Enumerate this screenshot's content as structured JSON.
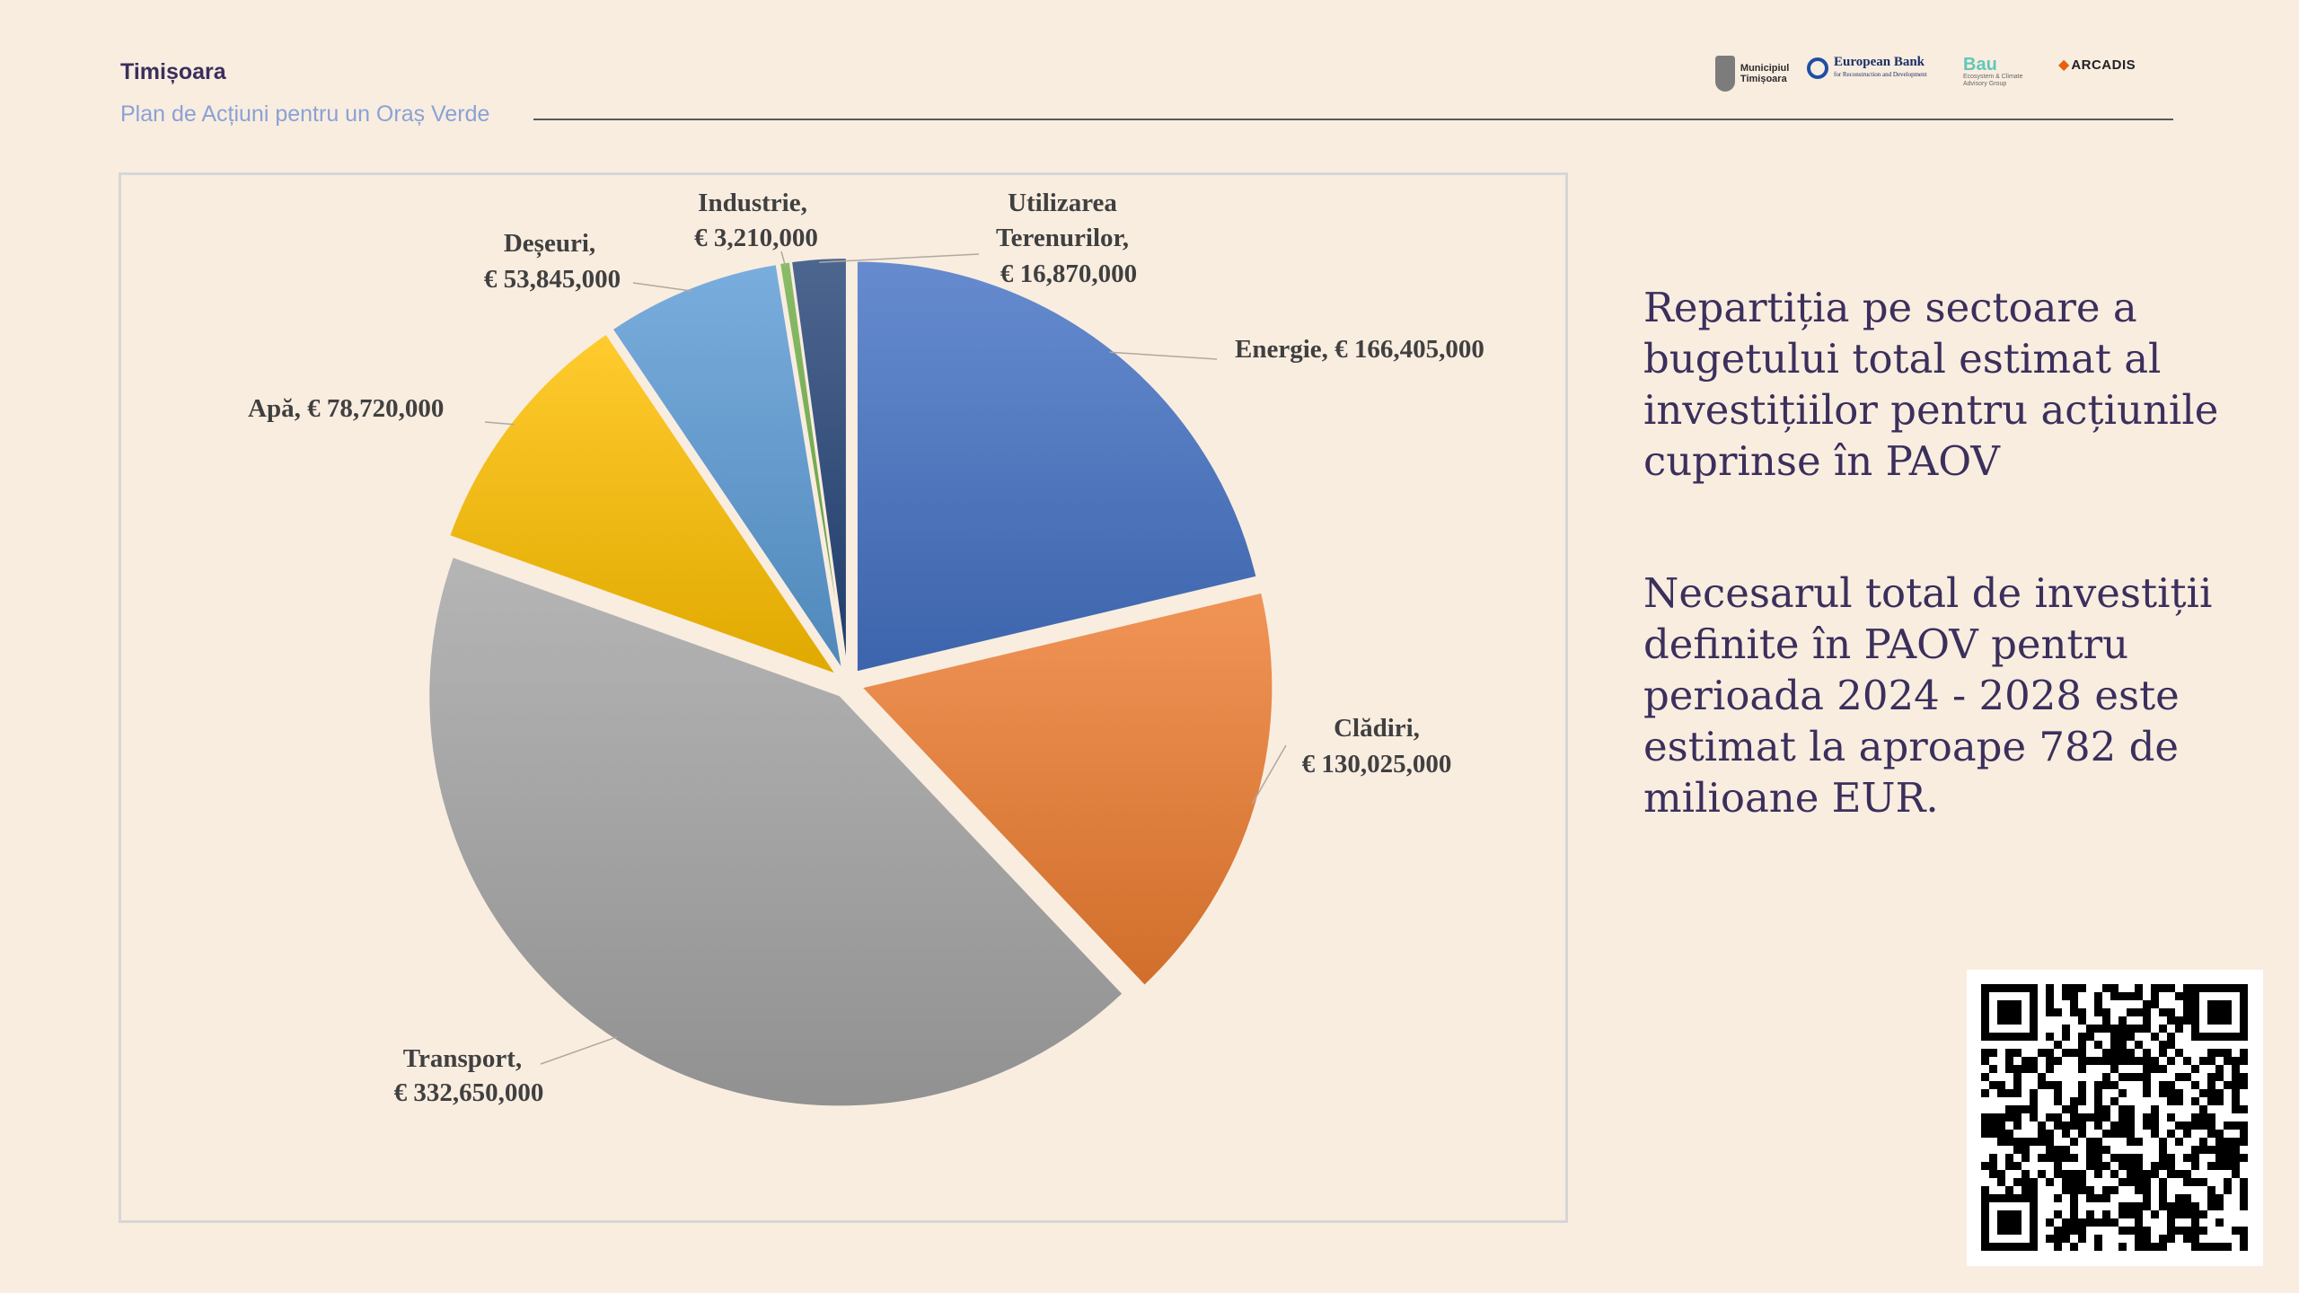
{
  "header": {
    "title": "Timișoara",
    "subtitle": "Plan de Acțiuni pentru un Oraș Verde"
  },
  "logos": {
    "municipiu": "Municipiul Timișoara",
    "ebrd": "European Bank",
    "ebrd_sub": "for Reconstruction and Development",
    "bau": "Bau",
    "bau_sub": "Ecosystem & Climate Advisory Group",
    "arcadis": "ARCADIS"
  },
  "chart_data": {
    "type": "pie",
    "exploded": true,
    "currency": "€",
    "slices": [
      {
        "name": "Energie",
        "value": 166405000,
        "label_name": "Energie,",
        "label_value": "€ 166,405,000",
        "color": "#4472c4"
      },
      {
        "name": "Clădiri",
        "value": 130025000,
        "label_name": "Clădiri,",
        "label_value": "€ 130,025,000",
        "color": "#ed7d31"
      },
      {
        "name": "Transport",
        "value": 332650000,
        "label_name": "Transport,",
        "label_value": "€ 332,650,000",
        "color": "#a5a5a5"
      },
      {
        "name": "Apă",
        "value": 78720000,
        "label_name": "Apă,",
        "label_value": "€ 78,720,000",
        "color": "#ffc000"
      },
      {
        "name": "Deșeuri",
        "value": 53845000,
        "label_name": "Deșeuri,",
        "label_value": "€ 53,845,000",
        "color": "#5b9bd5"
      },
      {
        "name": "Industrie",
        "value": 3210000,
        "label_name": "Industrie,",
        "label_value": "€ 3,210,000",
        "color": "#70ad47"
      },
      {
        "name": "Utilizarea Terenurilor",
        "value": 16870000,
        "label_name": "Utilizarea Terenurilor,",
        "label_value": "€ 16,870,000",
        "color": "#264478"
      }
    ]
  },
  "side": {
    "heading": "Repartiția pe sectoare a bugetului total estimat al investițiilor pentru acțiunile cuprinse în PAOV",
    "body": "Necesarul total de investiții definite în PAOV pentru perioada 2024 - 2028 este estimat la aproape 782 de milioane EUR."
  }
}
